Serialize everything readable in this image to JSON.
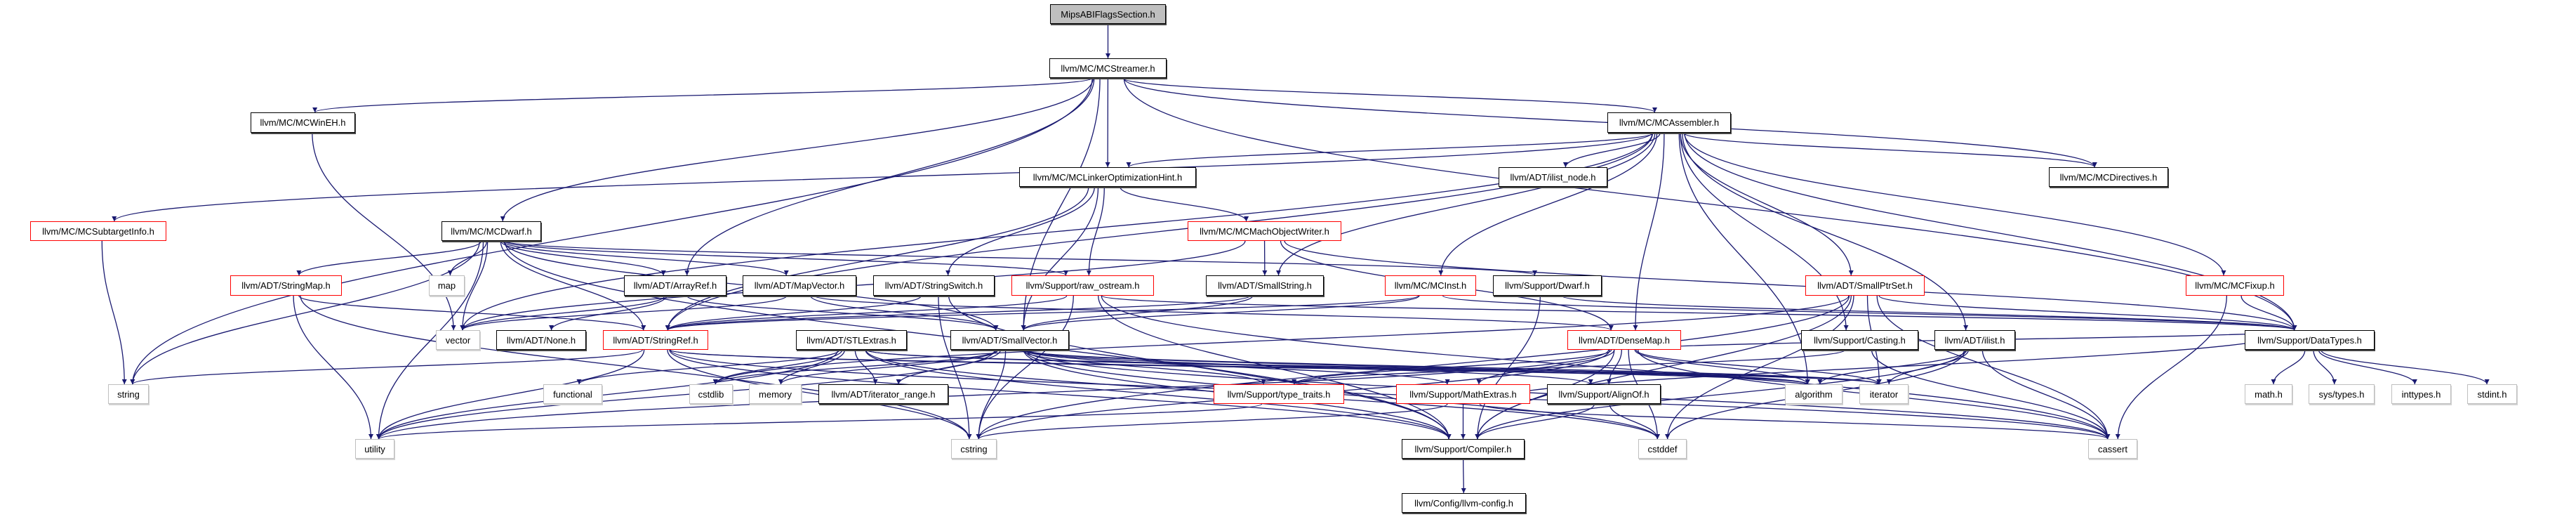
{
  "graph": {
    "edge_color": "#191970",
    "nodes": [
      {
        "id": "root",
        "label": "MipsABIFlagsSection.h",
        "style": "root"
      },
      {
        "id": "streamer",
        "label": "llvm/MC/MCStreamer.h",
        "style": "black"
      },
      {
        "id": "wineh",
        "label": "llvm/MC/MCWinEH.h",
        "style": "black"
      },
      {
        "id": "assembler",
        "label": "llvm/MC/MCAssembler.h",
        "style": "black"
      },
      {
        "id": "loh",
        "label": "llvm/MC/MCLinkerOptimizationHint.h",
        "style": "black"
      },
      {
        "id": "ilistnode",
        "label": "llvm/ADT/ilist_node.h",
        "style": "black"
      },
      {
        "id": "directives",
        "label": "llvm/MC/MCDirectives.h",
        "style": "black"
      },
      {
        "id": "subtarget",
        "label": "llvm/MC/MCSubtargetInfo.h",
        "style": "red"
      },
      {
        "id": "dwarf",
        "label": "llvm/MC/MCDwarf.h",
        "style": "black"
      },
      {
        "id": "machow",
        "label": "llvm/MC/MCMachObjectWriter.h",
        "style": "red"
      },
      {
        "id": "stringmap",
        "label": "llvm/ADT/StringMap.h",
        "style": "red"
      },
      {
        "id": "map",
        "label": "map",
        "style": "gray"
      },
      {
        "id": "arrayref",
        "label": "llvm/ADT/ArrayRef.h",
        "style": "black"
      },
      {
        "id": "mapvector",
        "label": "llvm/ADT/MapVector.h",
        "style": "black"
      },
      {
        "id": "stringswitch",
        "label": "llvm/ADT/StringSwitch.h",
        "style": "black"
      },
      {
        "id": "rawostream",
        "label": "llvm/Support/raw_ostream.h",
        "style": "red"
      },
      {
        "id": "smallstring",
        "label": "llvm/ADT/SmallString.h",
        "style": "black"
      },
      {
        "id": "mcinst",
        "label": "llvm/MC/MCInst.h",
        "style": "red"
      },
      {
        "id": "supdwarf",
        "label": "llvm/Support/Dwarf.h",
        "style": "black"
      },
      {
        "id": "smallptrset",
        "label": "llvm/ADT/SmallPtrSet.h",
        "style": "red"
      },
      {
        "id": "mcfixup",
        "label": "llvm/MC/MCFixup.h",
        "style": "red"
      },
      {
        "id": "vector",
        "label": "vector",
        "style": "gray"
      },
      {
        "id": "none",
        "label": "llvm/ADT/None.h",
        "style": "black"
      },
      {
        "id": "stringref",
        "label": "llvm/ADT/StringRef.h",
        "style": "red"
      },
      {
        "id": "stlextras",
        "label": "llvm/ADT/STLExtras.h",
        "style": "black"
      },
      {
        "id": "smallvector",
        "label": "llvm/ADT/SmallVector.h",
        "style": "black"
      },
      {
        "id": "densemap",
        "label": "llvm/ADT/DenseMap.h",
        "style": "red"
      },
      {
        "id": "casting",
        "label": "llvm/Support/Casting.h",
        "style": "black"
      },
      {
        "id": "ilist",
        "label": "llvm/ADT/ilist.h",
        "style": "black"
      },
      {
        "id": "datatypes",
        "label": "llvm/Support/DataTypes.h",
        "style": "black"
      },
      {
        "id": "string",
        "label": "string",
        "style": "gray"
      },
      {
        "id": "functional",
        "label": "functional",
        "style": "gray"
      },
      {
        "id": "cstdlib",
        "label": "cstdlib",
        "style": "gray"
      },
      {
        "id": "memory",
        "label": "memory",
        "style": "gray"
      },
      {
        "id": "iterrange",
        "label": "llvm/ADT/iterator_range.h",
        "style": "black"
      },
      {
        "id": "typetraits",
        "label": "llvm/Support/type_traits.h",
        "style": "red"
      },
      {
        "id": "mathextras",
        "label": "llvm/Support/MathExtras.h",
        "style": "red"
      },
      {
        "id": "alignof",
        "label": "llvm/Support/AlignOf.h",
        "style": "black"
      },
      {
        "id": "algorithm",
        "label": "algorithm",
        "style": "gray"
      },
      {
        "id": "iterator",
        "label": "iterator",
        "style": "gray"
      },
      {
        "id": "mathh",
        "label": "math.h",
        "style": "gray"
      },
      {
        "id": "systypes",
        "label": "sys/types.h",
        "style": "gray"
      },
      {
        "id": "inttypes",
        "label": "inttypes.h",
        "style": "gray"
      },
      {
        "id": "stdint",
        "label": "stdint.h",
        "style": "gray"
      },
      {
        "id": "utility",
        "label": "utility",
        "style": "gray"
      },
      {
        "id": "cstring",
        "label": "cstring",
        "style": "gray"
      },
      {
        "id": "compiler",
        "label": "llvm/Support/Compiler.h",
        "style": "black"
      },
      {
        "id": "cstddef",
        "label": "cstddef",
        "style": "gray"
      },
      {
        "id": "cassert",
        "label": "cassert",
        "style": "gray"
      },
      {
        "id": "llvmconfig",
        "label": "llvm/Config/llvm-config.h",
        "style": "black"
      }
    ],
    "edges": [
      [
        "root",
        "streamer"
      ],
      [
        "streamer",
        "wineh"
      ],
      [
        "streamer",
        "dwarf"
      ],
      [
        "streamer",
        "loh"
      ],
      [
        "streamer",
        "assembler"
      ],
      [
        "streamer",
        "directives"
      ],
      [
        "streamer",
        "datatypes"
      ],
      [
        "streamer",
        "string"
      ],
      [
        "streamer",
        "arrayref"
      ],
      [
        "streamer",
        "smallvector"
      ],
      [
        "wineh",
        "vector"
      ],
      [
        "subtarget",
        "string"
      ],
      [
        "assembler",
        "subtarget"
      ],
      [
        "assembler",
        "ilistnode"
      ],
      [
        "assembler",
        "directives"
      ],
      [
        "assembler",
        "mcfixup"
      ],
      [
        "assembler",
        "mcinst"
      ],
      [
        "assembler",
        "smallstring"
      ],
      [
        "assembler",
        "smallptrset"
      ],
      [
        "assembler",
        "casting"
      ],
      [
        "assembler",
        "ilist"
      ],
      [
        "assembler",
        "densemap"
      ],
      [
        "assembler",
        "datatypes"
      ],
      [
        "assembler",
        "loh"
      ],
      [
        "assembler",
        "algorithm"
      ],
      [
        "assembler",
        "vector"
      ],
      [
        "assembler",
        "stringref"
      ],
      [
        "loh",
        "machow"
      ],
      [
        "loh",
        "stringswitch"
      ],
      [
        "loh",
        "rawostream"
      ],
      [
        "loh",
        "smallvector"
      ],
      [
        "loh",
        "stringref"
      ],
      [
        "dwarf",
        "stringmap"
      ],
      [
        "dwarf",
        "map"
      ],
      [
        "dwarf",
        "vector"
      ],
      [
        "dwarf",
        "arrayref"
      ],
      [
        "dwarf",
        "mapvector"
      ],
      [
        "dwarf",
        "stringref"
      ],
      [
        "dwarf",
        "supdwarf"
      ],
      [
        "dwarf",
        "rawostream"
      ],
      [
        "dwarf",
        "string"
      ],
      [
        "dwarf",
        "utility"
      ],
      [
        "dwarf",
        "smallvector"
      ],
      [
        "dwarf",
        "compiler"
      ],
      [
        "machow",
        "smallstring"
      ],
      [
        "machow",
        "densemap"
      ],
      [
        "machow",
        "vector"
      ],
      [
        "machow",
        "datatypes"
      ],
      [
        "stringmap",
        "stringref"
      ],
      [
        "stringmap",
        "utility"
      ],
      [
        "stringmap",
        "cstring"
      ],
      [
        "arrayref",
        "none"
      ],
      [
        "arrayref",
        "smallvector"
      ],
      [
        "arrayref",
        "vector"
      ],
      [
        "mapvector",
        "densemap"
      ],
      [
        "mapvector",
        "vector"
      ],
      [
        "mapvector",
        "smallvector"
      ],
      [
        "stringswitch",
        "stringref"
      ],
      [
        "stringswitch",
        "compiler"
      ],
      [
        "stringswitch",
        "cstring"
      ],
      [
        "rawostream",
        "stringref"
      ],
      [
        "rawostream",
        "datatypes"
      ],
      [
        "rawostream",
        "compiler"
      ],
      [
        "rawostream",
        "cassert"
      ],
      [
        "rawostream",
        "cstring"
      ],
      [
        "smallstring",
        "smallvector"
      ],
      [
        "smallstring",
        "stringref"
      ],
      [
        "mcinst",
        "smallvector"
      ],
      [
        "mcinst",
        "datatypes"
      ],
      [
        "mcinst",
        "stringref"
      ],
      [
        "supdwarf",
        "datatypes"
      ],
      [
        "supdwarf",
        "compiler"
      ],
      [
        "smallptrset",
        "compiler"
      ],
      [
        "smallptrset",
        "datatypes"
      ],
      [
        "smallptrset",
        "cassert"
      ],
      [
        "smallptrset",
        "cstddef"
      ],
      [
        "smallptrset",
        "cstring"
      ],
      [
        "smallptrset",
        "iterator"
      ],
      [
        "smallptrset",
        "cstdlib"
      ],
      [
        "mcfixup",
        "datatypes"
      ],
      [
        "mcfixup",
        "cassert"
      ],
      [
        "stringref",
        "string"
      ],
      [
        "stringref",
        "utility"
      ],
      [
        "stringref",
        "cstring"
      ],
      [
        "stringref",
        "compiler"
      ],
      [
        "stringref",
        "algorithm"
      ],
      [
        "stringref",
        "cassert"
      ],
      [
        "stringref",
        "iterator"
      ],
      [
        "stlextras",
        "functional"
      ],
      [
        "stlextras",
        "cstdlib"
      ],
      [
        "stlextras",
        "memory"
      ],
      [
        "stlextras",
        "iterrange"
      ],
      [
        "stlextras",
        "compiler"
      ],
      [
        "stlextras",
        "utility"
      ],
      [
        "stlextras",
        "cstddef"
      ],
      [
        "stlextras",
        "iterator"
      ],
      [
        "stlextras",
        "algorithm"
      ],
      [
        "smallvector",
        "iterrange"
      ],
      [
        "smallvector",
        "typetraits"
      ],
      [
        "smallvector",
        "mathextras"
      ],
      [
        "smallvector",
        "alignof"
      ],
      [
        "smallvector",
        "compiler"
      ],
      [
        "smallvector",
        "cstring"
      ],
      [
        "smallvector",
        "cstddef"
      ],
      [
        "smallvector",
        "algorithm"
      ],
      [
        "smallvector",
        "iterator"
      ],
      [
        "smallvector",
        "memory"
      ],
      [
        "smallvector",
        "cstdlib"
      ],
      [
        "smallvector",
        "cassert"
      ],
      [
        "smallvector",
        "utility"
      ],
      [
        "densemap",
        "typetraits"
      ],
      [
        "densemap",
        "mathextras"
      ],
      [
        "densemap",
        "alignof"
      ],
      [
        "densemap",
        "compiler"
      ],
      [
        "densemap",
        "cstddef"
      ],
      [
        "densemap",
        "algorithm"
      ],
      [
        "densemap",
        "iterator"
      ],
      [
        "densemap",
        "utility"
      ],
      [
        "densemap",
        "cassert"
      ],
      [
        "densemap",
        "cstring"
      ],
      [
        "densemap",
        "datatypes"
      ],
      [
        "typetraits",
        "utility"
      ],
      [
        "mathextras",
        "compiler"
      ],
      [
        "mathextras",
        "cassert"
      ],
      [
        "mathextras",
        "cstring"
      ],
      [
        "mathextras",
        "datatypes"
      ],
      [
        "alignof",
        "compiler"
      ],
      [
        "alignof",
        "cstddef"
      ],
      [
        "casting",
        "typetraits"
      ],
      [
        "casting",
        "cassert"
      ],
      [
        "ilist",
        "algorithm"
      ],
      [
        "ilist",
        "iterator"
      ],
      [
        "ilist",
        "cassert"
      ],
      [
        "ilist",
        "cstddef"
      ],
      [
        "ilist",
        "compiler"
      ],
      [
        "datatypes",
        "mathh"
      ],
      [
        "datatypes",
        "systypes"
      ],
      [
        "datatypes",
        "inttypes"
      ],
      [
        "datatypes",
        "stdint"
      ],
      [
        "compiler",
        "llvmconfig"
      ]
    ]
  }
}
